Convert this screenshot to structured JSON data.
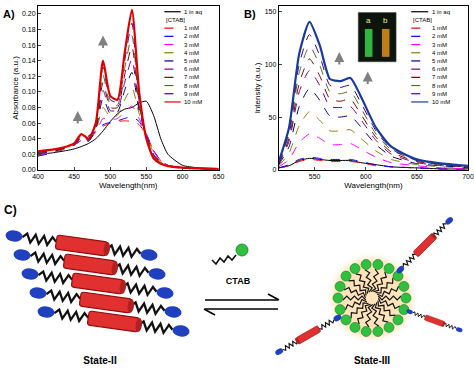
{
  "chart_data": [
    {
      "panel": "A)",
      "type": "line",
      "x_label": "Wavelength(nm)",
      "y_label": "Absorbance (a.u.)",
      "x": [
        400,
        420,
        440,
        450,
        460,
        470,
        480,
        490,
        500,
        510,
        520,
        530,
        540,
        550,
        560,
        570,
        580,
        600,
        620,
        650
      ],
      "xlim": [
        400,
        650
      ],
      "xticks": [
        400,
        450,
        500,
        550,
        600,
        650
      ],
      "ylim": [
        0,
        0.21
      ],
      "yticks": [
        {
          "value": 0,
          "label": "0.00"
        },
        {
          "value": 0.02,
          "label": "0.02"
        },
        {
          "value": 0.04,
          "label": "0.04"
        },
        {
          "value": 0.06,
          "label": "0.06"
        },
        {
          "value": 0.08,
          "label": "0.08"
        },
        {
          "value": 0.1,
          "label": "0.10"
        },
        {
          "value": 0.12,
          "label": "0.12"
        },
        {
          "value": 0.14,
          "label": "0.14"
        },
        {
          "value": 0.16,
          "label": "0.16"
        },
        {
          "value": 0.18,
          "label": "0.18"
        },
        {
          "value": 0.2,
          "label": "0.20"
        }
      ],
      "grid": false,
      "legend": "upper right",
      "legend_title": "[CTAB]",
      "series": [
        {
          "name": "1 in aq",
          "color": "#000000",
          "line_style": "solid",
          "values": [
            0.02,
            0.022,
            0.025,
            0.027,
            0.03,
            0.034,
            0.04,
            0.05,
            0.062,
            0.072,
            0.078,
            0.08,
            0.086,
            0.088,
            0.07,
            0.04,
            0.02,
            0.006,
            0.003,
            0.002
          ]
        },
        {
          "name": "1 mM",
          "color": "#ff0000",
          "line_style": "dash",
          "values": [
            0.018,
            0.022,
            0.028,
            0.032,
            0.038,
            0.044,
            0.05,
            0.056,
            0.06,
            0.062,
            0.063,
            0.062,
            0.058,
            0.045,
            0.025,
            0.012,
            0.006,
            0.003,
            0.002,
            0.001
          ]
        },
        {
          "name": "2 mM",
          "color": "#0000ff",
          "line_style": "dash",
          "values": [
            0.018,
            0.022,
            0.028,
            0.032,
            0.038,
            0.043,
            0.049,
            0.058,
            0.061,
            0.063,
            0.066,
            0.068,
            0.062,
            0.046,
            0.025,
            0.012,
            0.006,
            0.003,
            0.002,
            0.001
          ]
        },
        {
          "name": "3 mM",
          "color": "#ff00ff",
          "line_style": "dash",
          "values": [
            0.019,
            0.023,
            0.028,
            0.032,
            0.038,
            0.04,
            0.048,
            0.066,
            0.064,
            0.066,
            0.074,
            0.082,
            0.066,
            0.046,
            0.024,
            0.011,
            0.006,
            0.003,
            0.002,
            0.001
          ]
        },
        {
          "name": "4 mM",
          "color": "#808000",
          "line_style": "dash",
          "values": [
            0.02,
            0.023,
            0.028,
            0.032,
            0.04,
            0.038,
            0.05,
            0.08,
            0.068,
            0.07,
            0.09,
            0.105,
            0.072,
            0.045,
            0.022,
            0.01,
            0.005,
            0.003,
            0.002,
            0.001
          ]
        },
        {
          "name": "5 mM",
          "color": "#000080",
          "line_style": "dash",
          "values": [
            0.021,
            0.024,
            0.029,
            0.032,
            0.041,
            0.037,
            0.052,
            0.092,
            0.072,
            0.074,
            0.102,
            0.125,
            0.076,
            0.044,
            0.02,
            0.01,
            0.005,
            0.003,
            0.002,
            0.001
          ]
        },
        {
          "name": "6 mM",
          "color": "#800080",
          "line_style": "dash",
          "values": [
            0.021,
            0.024,
            0.029,
            0.033,
            0.042,
            0.037,
            0.054,
            0.102,
            0.076,
            0.077,
            0.112,
            0.142,
            0.079,
            0.043,
            0.019,
            0.009,
            0.005,
            0.003,
            0.002,
            0.001
          ]
        },
        {
          "name": "7 mM",
          "color": "#800000",
          "line_style": "dash",
          "values": [
            0.022,
            0.025,
            0.029,
            0.033,
            0.043,
            0.038,
            0.055,
            0.112,
            0.08,
            0.08,
            0.122,
            0.158,
            0.082,
            0.042,
            0.018,
            0.009,
            0.005,
            0.003,
            0.002,
            0.001
          ]
        },
        {
          "name": "8 mM",
          "color": "#556b2f",
          "line_style": "dash",
          "values": [
            0.022,
            0.025,
            0.03,
            0.033,
            0.044,
            0.038,
            0.057,
            0.122,
            0.084,
            0.083,
            0.13,
            0.172,
            0.085,
            0.041,
            0.017,
            0.009,
            0.005,
            0.003,
            0.002,
            0.001
          ]
        },
        {
          "name": "9 mM",
          "color": "#4b0082",
          "line_style": "dash",
          "values": [
            0.023,
            0.025,
            0.03,
            0.034,
            0.045,
            0.039,
            0.058,
            0.132,
            0.09,
            0.087,
            0.14,
            0.188,
            0.088,
            0.04,
            0.016,
            0.008,
            0.005,
            0.003,
            0.002,
            0.001
          ]
        },
        {
          "name": "10 mM",
          "color": "#e00000",
          "line_style": "solid",
          "values": [
            0.024,
            0.026,
            0.03,
            0.034,
            0.046,
            0.04,
            0.06,
            0.14,
            0.095,
            0.09,
            0.15,
            0.205,
            0.1,
            0.04,
            0.015,
            0.008,
            0.005,
            0.003,
            0.002,
            0.001
          ]
        }
      ]
    },
    {
      "panel": "B)",
      "type": "line",
      "x_label": "Wavelength(nm)",
      "y_label": "Intensity (a.u.)",
      "x": [
        515,
        525,
        535,
        545,
        555,
        565,
        575,
        585,
        595,
        610,
        625,
        650,
        675,
        700
      ],
      "xlim": [
        515,
        700
      ],
      "xticks": [
        550,
        600,
        650,
        700
      ],
      "ylim": [
        0,
        155
      ],
      "yticks": [
        0,
        50,
        100,
        150
      ],
      "grid": false,
      "legend": "upper right",
      "legend_title": "[CTAB]",
      "inset_labels": [
        "a",
        "b"
      ],
      "series": [
        {
          "name": "1 in aq",
          "color": "#000000",
          "line_style": "solid",
          "values": [
            2,
            4,
            9,
            11,
            10,
            9,
            9,
            9,
            7,
            5,
            3,
            2,
            1,
            1
          ]
        },
        {
          "name": "1 mM",
          "color": "#ff0000",
          "line_style": "dash",
          "values": [
            2,
            4,
            8,
            10,
            9,
            8,
            8,
            8,
            7,
            4,
            3,
            2,
            1,
            1
          ]
        },
        {
          "name": "2 mM",
          "color": "#0000ff",
          "line_style": "dash",
          "values": [
            2,
            5,
            10,
            12,
            11,
            10,
            10,
            10,
            8,
            5,
            3,
            2,
            1,
            1
          ]
        },
        {
          "name": "3 mM",
          "color": "#ff00ff",
          "line_style": "dash",
          "values": [
            3,
            10,
            26,
            34,
            30,
            24,
            24,
            25,
            20,
            12,
            7,
            4,
            2,
            1
          ]
        },
        {
          "name": "4 mM",
          "color": "#808000",
          "line_style": "dash",
          "values": [
            4,
            16,
            42,
            55,
            47,
            37,
            37,
            38,
            30,
            18,
            10,
            5,
            3,
            2
          ]
        },
        {
          "name": "5 mM",
          "color": "#000080",
          "line_style": "dash",
          "values": [
            5,
            22,
            60,
            77,
            66,
            51,
            50,
            51,
            41,
            24,
            13,
            6,
            4,
            2
          ]
        },
        {
          "name": "6 mM",
          "color": "#800080",
          "line_style": "dash",
          "values": [
            6,
            27,
            74,
            94,
            80,
            60,
            59,
            60,
            48,
            28,
            15,
            7,
            4,
            3
          ]
        },
        {
          "name": "7 mM",
          "color": "#800000",
          "line_style": "dash",
          "values": [
            6,
            30,
            82,
            105,
            89,
            67,
            65,
            67,
            53,
            31,
            17,
            8,
            5,
            3
          ]
        },
        {
          "name": "8 mM",
          "color": "#556b2f",
          "line_style": "dash",
          "values": [
            7,
            33,
            92,
            117,
            99,
            74,
            72,
            74,
            59,
            34,
            19,
            9,
            5,
            3
          ]
        },
        {
          "name": "9 mM",
          "color": "#4b0082",
          "line_style": "dash",
          "values": [
            7,
            36,
            100,
            128,
            108,
            80,
            78,
            80,
            64,
            37,
            20,
            9,
            5,
            3
          ]
        },
        {
          "name": "10 mM",
          "color": "#1a3a9c",
          "line_style": "solid",
          "values": [
            8,
            40,
            110,
            140,
            118,
            86,
            84,
            87,
            70,
            40,
            22,
            10,
            6,
            4
          ]
        }
      ]
    }
  ],
  "diagram": {
    "panel": "C)",
    "reagent": "CTAB",
    "states": [
      "State-II",
      "State-III"
    ]
  }
}
